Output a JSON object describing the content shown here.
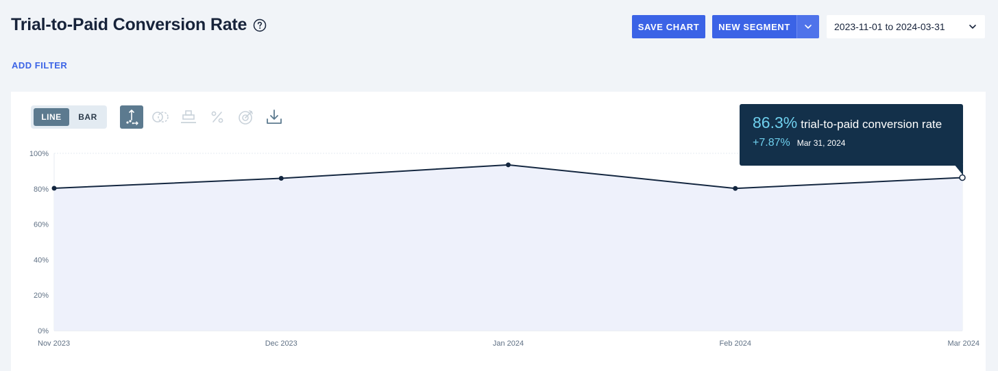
{
  "header": {
    "title": "Trial-to-Paid Conversion Rate",
    "save_chart_label": "SAVE CHART",
    "new_segment_label": "NEW SEGMENT",
    "date_range": "2023-11-01 to 2024-03-31"
  },
  "filters": {
    "add_filter_label": "ADD FILTER"
  },
  "toolbar": {
    "line_label": "LINE",
    "bar_label": "BAR",
    "tools": [
      "axis-scale-icon",
      "compare-icon",
      "stack-icon",
      "percent-icon",
      "goal-icon",
      "download-icon"
    ]
  },
  "tooltip": {
    "value": "86.3%",
    "label": "trial-to-paid conversion rate",
    "change": "+7.87%",
    "date": "Mar 31, 2024"
  },
  "colors": {
    "accent": "#3b63e6",
    "line": "#13263f",
    "area": "#eef1fb",
    "tooltip_bg": "#13304a",
    "tooltip_value": "#6fd0ee"
  },
  "chart_data": {
    "type": "area",
    "categories": [
      "Nov 2023",
      "Dec 2023",
      "Jan 2024",
      "Feb 2024",
      "Mar 2024"
    ],
    "values": [
      80.3,
      85.9,
      93.5,
      80.2,
      86.3
    ],
    "ylim": [
      0,
      100
    ],
    "yticks": [
      "0%",
      "20%",
      "40%",
      "60%",
      "80%",
      "100%"
    ],
    "grid": true,
    "legend": "none"
  }
}
